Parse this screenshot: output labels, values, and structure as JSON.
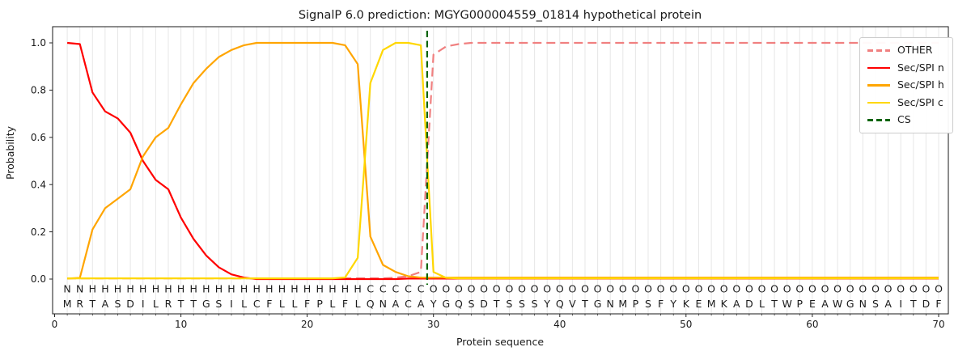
{
  "title": "SignalP 6.0 prediction: MGYG000004559_01814 hypothetical protein",
  "chart_data": {
    "type": "line",
    "title": "SignalP 6.0 prediction: MGYG000004559_01814 hypothetical protein",
    "xlabel": "Protein sequence",
    "ylabel": "Probability",
    "xlim": [
      0,
      70.8
    ],
    "ylim": [
      -0.15,
      1.07
    ],
    "xticks": [
      0,
      10,
      20,
      30,
      40,
      50,
      60,
      70
    ],
    "yticks": [
      0.0,
      0.2,
      0.4,
      0.6,
      0.8,
      1.0
    ],
    "grid": "vertical line per residue, light gray",
    "legend_position": "upper right",
    "x_start": 1,
    "x_end": 70,
    "sequence": "MRTASDILRTTGSILCFLLFPLFLQNACAYGQSDTSSSYQVTGNMPSFYKEMKADLTWPEAWGNSAITDF",
    "region_labels": "NNHHHHHHHHHHHHHHHHHHHHHHCCCCCOOOOOOOOOOOOOOOOOOOOOOOOOOOOOOOOOOOOOOOOO",
    "region_colors": {
      "N": "#ff0000",
      "H": "#ffa500",
      "C": "#ffd700",
      "O": "#949494"
    },
    "sequence_color": "#1a1a1a",
    "series": [
      {
        "name": "OTHER",
        "color": "#f08080",
        "dash": true,
        "values": [
          0.003,
          0.003,
          0.003,
          0.003,
          0.003,
          0.003,
          0.003,
          0.003,
          0.003,
          0.003,
          0.003,
          0.003,
          0.003,
          0.003,
          0.003,
          0.003,
          0.003,
          0.003,
          0.003,
          0.003,
          0.003,
          0.003,
          0.003,
          0.003,
          0.003,
          0.003,
          0.006,
          0.012,
          0.03,
          0.95,
          0.985,
          0.995,
          1.0,
          1.0,
          1.0,
          1.0,
          1.0,
          1.0,
          1.0,
          1.0,
          1.0,
          1.0,
          1.0,
          1.0,
          1.0,
          1.0,
          1.0,
          1.0,
          1.0,
          1.0,
          1.0,
          1.0,
          1.0,
          1.0,
          1.0,
          1.0,
          1.0,
          1.0,
          1.0,
          1.0,
          1.0,
          1.0,
          1.0,
          1.0,
          1.0,
          1.0,
          1.0,
          1.0,
          1.0,
          1.0
        ]
      },
      {
        "name": "Sec/SPI n",
        "color": "#ff0000",
        "dash": false,
        "values": [
          1.0,
          0.995,
          0.79,
          0.71,
          0.68,
          0.62,
          0.5,
          0.42,
          0.38,
          0.26,
          0.17,
          0.1,
          0.05,
          0.02,
          0.006,
          0.0,
          0.0,
          0.0,
          0.0,
          0.0,
          0.0,
          0.0,
          0.0,
          0.0,
          0.0,
          0.0,
          0.0,
          0.002,
          0.002,
          0.002,
          0.002,
          0.002,
          0.002,
          0.002,
          0.002,
          0.002,
          0.002,
          0.002,
          0.002,
          0.002,
          0.002,
          0.002,
          0.002,
          0.002,
          0.002,
          0.002,
          0.002,
          0.002,
          0.002,
          0.002,
          0.002,
          0.002,
          0.002,
          0.002,
          0.002,
          0.002,
          0.002,
          0.002,
          0.002,
          0.002,
          0.002,
          0.002,
          0.002,
          0.002,
          0.002,
          0.002,
          0.002,
          0.002,
          0.002,
          0.002
        ]
      },
      {
        "name": "Sec/SPI h",
        "color": "#ffa500",
        "dash": false,
        "values": [
          0.002,
          0.005,
          0.21,
          0.3,
          0.34,
          0.38,
          0.52,
          0.6,
          0.64,
          0.74,
          0.83,
          0.89,
          0.94,
          0.97,
          0.99,
          1.0,
          1.0,
          1.0,
          1.0,
          1.0,
          1.0,
          1.0,
          0.99,
          0.91,
          0.18,
          0.06,
          0.03,
          0.012,
          0.006,
          0.006,
          0.006,
          0.006,
          0.006,
          0.006,
          0.006,
          0.006,
          0.006,
          0.006,
          0.006,
          0.006,
          0.006,
          0.006,
          0.006,
          0.006,
          0.006,
          0.006,
          0.006,
          0.006,
          0.006,
          0.006,
          0.006,
          0.006,
          0.006,
          0.006,
          0.006,
          0.006,
          0.006,
          0.006,
          0.006,
          0.006,
          0.006,
          0.006,
          0.006,
          0.006,
          0.006,
          0.006,
          0.006,
          0.006,
          0.006,
          0.006
        ]
      },
      {
        "name": "Sec/SPI c",
        "color": "#ffd700",
        "dash": false,
        "values": [
          0.003,
          0.003,
          0.003,
          0.003,
          0.003,
          0.003,
          0.003,
          0.003,
          0.003,
          0.003,
          0.003,
          0.003,
          0.003,
          0.003,
          0.003,
          0.003,
          0.003,
          0.003,
          0.003,
          0.003,
          0.003,
          0.003,
          0.007,
          0.09,
          0.83,
          0.97,
          1.0,
          1.0,
          0.99,
          0.03,
          0.005,
          0.003,
          0.003,
          0.003,
          0.003,
          0.003,
          0.003,
          0.003,
          0.003,
          0.003,
          0.003,
          0.003,
          0.003,
          0.003,
          0.003,
          0.003,
          0.003,
          0.003,
          0.003,
          0.003,
          0.003,
          0.003,
          0.003,
          0.003,
          0.003,
          0.003,
          0.003,
          0.003,
          0.003,
          0.003,
          0.003,
          0.003,
          0.003,
          0.003,
          0.003,
          0.003,
          0.003,
          0.003,
          0.003,
          0.003
        ]
      }
    ],
    "cs_line": {
      "name": "CS",
      "color": "#006400",
      "dash": true,
      "position": 29.5
    },
    "legend_entries": [
      "OTHER",
      "Sec/SPI n",
      "Sec/SPI h",
      "Sec/SPI c",
      "CS"
    ]
  }
}
